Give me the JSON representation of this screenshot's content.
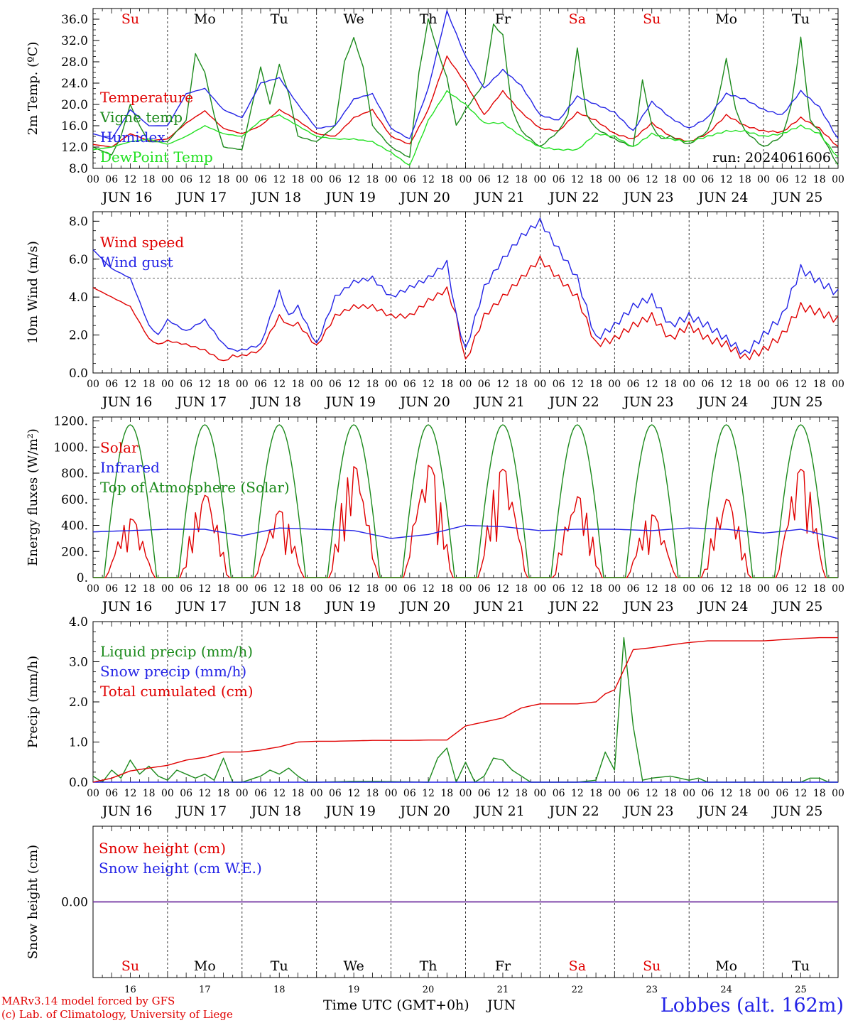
{
  "run_label": "run: 2024061606",
  "day_names": [
    "Su",
    "Mo",
    "Tu",
    "We",
    "Th",
    "Fr",
    "Sa",
    "Su",
    "Mo",
    "Tu"
  ],
  "weekend_days": [
    0,
    6,
    7
  ],
  "date_labels": [
    "JUN 16",
    "JUN 17",
    "JUN 18",
    "JUN 19",
    "JUN 20",
    "JUN 21",
    "JUN 22",
    "JUN 23",
    "JUN 24",
    "JUN 25"
  ],
  "hour_ticks": [
    "00",
    "06",
    "12",
    "18"
  ],
  "final_hour": "00",
  "bottom_day_numbers": [
    "16",
    "17",
    "18",
    "19",
    "20",
    "21",
    "22",
    "23",
    "24",
    "25"
  ],
  "x_axis_title": "Time UTC (GMT+0h)",
  "x_axis_month": "JUN",
  "credits": {
    "line1": "MARv3.14 model forced by GFS",
    "line2": "(c) Lab. of Climatology, University of Liege"
  },
  "station_label": "Lobbes (alt. 162m)",
  "colors": {
    "red": "#e00000",
    "green": "#1c8a1c",
    "blue": "#2323e6",
    "light_green": "#22e022",
    "purple": "#7030a0"
  },
  "chart_data": [
    {
      "id": "temperature",
      "type": "line",
      "ylabel": "2m Temp. (ºC)",
      "ylim": [
        8,
        38
      ],
      "yticks": [
        8.0,
        12.0,
        16.0,
        20.0,
        24.0,
        28.0,
        32.0,
        36.0
      ],
      "ytick_labels": [
        "8.0",
        "12.0",
        "16.0",
        "20.0",
        "24.0",
        "28.0",
        "32.0",
        "36.0"
      ],
      "x_unit": "hours since JUN 16 00 UTC",
      "series": [
        {
          "name": "Temperature",
          "color": "red",
          "x": [
            0,
            6,
            12,
            18,
            24,
            30,
            36,
            42,
            48,
            54,
            60,
            66,
            72,
            78,
            84,
            90,
            96,
            102,
            108,
            114,
            120,
            126,
            132,
            138,
            144,
            150,
            156,
            162,
            168,
            174,
            180,
            186,
            192,
            198,
            204,
            210,
            216,
            222,
            228,
            234,
            240
          ],
          "values": [
            12.5,
            12.0,
            14.5,
            13.2,
            13.5,
            16.5,
            18.8,
            15.5,
            14.5,
            16.0,
            19.0,
            17.0,
            14.5,
            14.0,
            17.5,
            19.0,
            14.0,
            12.5,
            19.0,
            29.0,
            24.0,
            18.0,
            22.5,
            18.5,
            15.5,
            15.0,
            18.5,
            17.0,
            14.5,
            13.5,
            16.5,
            14.0,
            13.0,
            14.5,
            18.0,
            16.0,
            15.0,
            14.8,
            17.5,
            15.5,
            12.0
          ]
        },
        {
          "name": "Vigne temp",
          "color": "green",
          "x": [
            0,
            6,
            9,
            12,
            15,
            18,
            24,
            30,
            33,
            36,
            39,
            42,
            48,
            54,
            57,
            60,
            63,
            66,
            72,
            78,
            81,
            84,
            87,
            90,
            96,
            102,
            105,
            108,
            111,
            114,
            117,
            120,
            126,
            129,
            132,
            135,
            138,
            144,
            150,
            153,
            156,
            159,
            162,
            168,
            174,
            177,
            180,
            183,
            186,
            192,
            198,
            201,
            204,
            207,
            210,
            216,
            222,
            225,
            228,
            231,
            234,
            240
          ],
          "values": [
            12.0,
            10.5,
            14.0,
            20.0,
            16.0,
            13.0,
            13.0,
            17.0,
            29.5,
            26.0,
            18.0,
            12.0,
            11.5,
            27.0,
            20.0,
            27.5,
            22.0,
            14.0,
            13.0,
            16.0,
            28.0,
            32.5,
            27.0,
            16.0,
            12.0,
            10.0,
            26.0,
            36.0,
            30.0,
            25.0,
            16.0,
            19.0,
            24.0,
            35.0,
            33.0,
            19.0,
            15.0,
            12.0,
            15.0,
            18.0,
            30.5,
            18.0,
            15.5,
            13.5,
            12.0,
            24.5,
            16.0,
            13.5,
            14.0,
            12.5,
            15.0,
            20.0,
            28.5,
            19.0,
            15.0,
            12.0,
            14.0,
            20.0,
            32.5,
            17.0,
            15.0,
            8.5
          ]
        },
        {
          "name": "Humidex",
          "color": "blue",
          "x": [
            0,
            6,
            12,
            18,
            24,
            30,
            36,
            42,
            48,
            54,
            60,
            66,
            72,
            78,
            84,
            90,
            96,
            102,
            108,
            114,
            120,
            126,
            132,
            138,
            144,
            150,
            156,
            162,
            168,
            174,
            180,
            186,
            192,
            198,
            204,
            210,
            216,
            222,
            228,
            234,
            240
          ],
          "values": [
            14.5,
            13.5,
            19.0,
            16.0,
            16.0,
            22.0,
            23.0,
            19.0,
            17.5,
            24.0,
            25.0,
            20.0,
            15.5,
            16.0,
            21.0,
            22.0,
            15.5,
            13.5,
            23.0,
            37.5,
            29.0,
            23.0,
            26.5,
            23.5,
            18.0,
            17.0,
            21.5,
            20.0,
            18.5,
            15.0,
            20.5,
            17.5,
            15.5,
            17.5,
            22.0,
            21.0,
            19.0,
            18.0,
            22.5,
            19.5,
            13.5
          ]
        },
        {
          "name": "DewPoint Temp",
          "color": "light_green",
          "x": [
            0,
            6,
            12,
            18,
            24,
            30,
            36,
            42,
            48,
            54,
            60,
            66,
            72,
            78,
            84,
            90,
            96,
            102,
            108,
            114,
            120,
            126,
            132,
            138,
            144,
            150,
            156,
            162,
            168,
            174,
            180,
            186,
            192,
            198,
            204,
            210,
            216,
            222,
            228,
            234,
            240
          ],
          "values": [
            11.5,
            12.0,
            13.0,
            13.5,
            12.5,
            14.0,
            16.0,
            14.5,
            14.0,
            17.0,
            18.0,
            16.0,
            14.0,
            13.5,
            13.5,
            13.0,
            11.0,
            8.5,
            17.0,
            22.5,
            20.0,
            16.5,
            16.5,
            14.0,
            12.0,
            11.5,
            11.5,
            14.5,
            14.0,
            12.0,
            14.5,
            13.5,
            13.0,
            14.0,
            15.0,
            15.0,
            14.0,
            14.5,
            16.0,
            14.5,
            10.0
          ]
        }
      ]
    },
    {
      "id": "wind",
      "type": "line",
      "ylabel": "10m Wind (m/s)",
      "ylim": [
        0,
        8.5
      ],
      "yticks": [
        0.0,
        2.0,
        4.0,
        6.0,
        8.0
      ],
      "ytick_labels": [
        "0.0",
        "2.0",
        "4.0",
        "6.0",
        "8.0"
      ],
      "reference_line": 5.0,
      "x_unit": "hours since JUN 16 00 UTC",
      "series": [
        {
          "name": "Wind speed",
          "color": "red",
          "x": [
            0,
            6,
            12,
            18,
            21,
            24,
            30,
            36,
            42,
            45,
            48,
            54,
            60,
            63,
            66,
            72,
            78,
            84,
            90,
            96,
            102,
            108,
            114,
            117,
            120,
            126,
            132,
            138,
            144,
            150,
            156,
            162,
            168,
            174,
            180,
            186,
            192,
            198,
            204,
            210,
            216,
            222,
            228,
            234,
            240
          ],
          "values": [
            4.5,
            4.0,
            3.5,
            1.8,
            1.5,
            1.7,
            1.5,
            1.2,
            0.6,
            0.9,
            0.9,
            1.2,
            3.0,
            2.5,
            2.6,
            1.4,
            3.0,
            3.5,
            3.5,
            3.0,
            3.0,
            3.8,
            4.4,
            3.0,
            0.6,
            3.0,
            4.0,
            5.0,
            6.0,
            5.0,
            4.0,
            1.5,
            1.8,
            2.5,
            3.0,
            1.8,
            2.5,
            1.8,
            1.5,
            0.8,
            1.2,
            2.0,
            3.5,
            3.2,
            2.8
          ]
        },
        {
          "name": "Wind gust",
          "color": "blue",
          "x": [
            0,
            6,
            12,
            18,
            21,
            24,
            30,
            36,
            42,
            45,
            48,
            54,
            60,
            63,
            66,
            72,
            78,
            84,
            90,
            96,
            102,
            108,
            114,
            117,
            120,
            126,
            132,
            138,
            144,
            150,
            156,
            162,
            168,
            174,
            180,
            186,
            192,
            198,
            204,
            210,
            216,
            222,
            228,
            234,
            240
          ],
          "values": [
            6.5,
            5.5,
            5.0,
            2.5,
            2.0,
            2.8,
            2.2,
            2.8,
            1.5,
            1.2,
            1.2,
            1.5,
            4.3,
            3.0,
            3.5,
            1.5,
            4.0,
            4.8,
            5.0,
            4.0,
            4.5,
            5.0,
            5.8,
            3.0,
            1.2,
            4.5,
            6.0,
            7.2,
            8.0,
            6.5,
            5.0,
            1.8,
            2.5,
            3.5,
            4.0,
            2.5,
            3.0,
            2.5,
            1.8,
            1.0,
            2.0,
            3.0,
            5.5,
            4.8,
            4.2
          ]
        }
      ]
    },
    {
      "id": "energy",
      "type": "line",
      "ylabel": "Energy fluxes (W/m²)",
      "ylim": [
        0,
        1230
      ],
      "yticks": [
        0,
        200,
        400,
        600,
        800,
        1000,
        1200
      ],
      "ytick_labels": [
        "0.",
        "200.",
        "400.",
        "600.",
        "800.",
        "1000.",
        "1200."
      ],
      "x_unit": "hours since JUN 16 00 UTC",
      "daily_toa_peak": 1170,
      "toa_daylight_hours": [
        3.5,
        20.5
      ],
      "solar_daily_peaks": [
        450,
        630,
        510,
        850,
        860,
        830,
        620,
        480,
        600,
        830
      ],
      "series": [
        {
          "name": "Solar",
          "color": "red"
        },
        {
          "name": "Infrared",
          "color": "blue",
          "x": [
            0,
            12,
            24,
            36,
            48,
            60,
            72,
            84,
            96,
            108,
            120,
            132,
            144,
            156,
            168,
            180,
            192,
            204,
            216,
            228,
            240
          ],
          "values": [
            350,
            360,
            370,
            370,
            320,
            380,
            370,
            360,
            300,
            330,
            400,
            390,
            360,
            370,
            370,
            360,
            380,
            370,
            340,
            370,
            300
          ]
        },
        {
          "name": "Top of Atmosphere (Solar)",
          "color": "green"
        }
      ]
    },
    {
      "id": "precip",
      "type": "line",
      "ylabel": "Precip (mm/h)",
      "ylim": [
        0,
        4.0
      ],
      "yticks": [
        0.0,
        1.0,
        2.0,
        3.0,
        4.0
      ],
      "ytick_labels": [
        "0.0",
        "1.0",
        "2.0",
        "3.0",
        "4.0"
      ],
      "x_unit": "hours since JUN 16 00 UTC",
      "series": [
        {
          "name": "Liquid precip (mm/h)",
          "color": "green",
          "x": [
            0,
            3,
            6,
            9,
            12,
            15,
            18,
            21,
            24,
            27,
            30,
            33,
            36,
            39,
            42,
            45,
            48,
            54,
            57,
            60,
            63,
            66,
            69,
            72,
            84,
            90,
            108,
            111,
            114,
            117,
            120,
            123,
            126,
            129,
            132,
            135,
            138,
            141,
            144,
            156,
            162,
            165,
            168,
            171,
            174,
            177,
            180,
            186,
            192,
            195,
            198,
            216,
            228,
            231,
            234,
            237,
            240
          ],
          "values": [
            0.15,
            0.0,
            0.3,
            0.1,
            0.55,
            0.2,
            0.4,
            0.15,
            0.05,
            0.3,
            0.2,
            0.1,
            0.2,
            0.05,
            0.6,
            0.0,
            0.0,
            0.15,
            0.3,
            0.2,
            0.35,
            0.15,
            0.0,
            0.0,
            0.02,
            0.02,
            0.0,
            0.6,
            0.85,
            0.0,
            0.5,
            0.0,
            0.15,
            0.6,
            0.55,
            0.3,
            0.15,
            0.0,
            0.0,
            0.0,
            0.05,
            0.75,
            0.3,
            3.6,
            1.4,
            0.05,
            0.1,
            0.15,
            0.05,
            0.1,
            0.0,
            0.0,
            0.0,
            0.1,
            0.1,
            0.0,
            0.0
          ]
        },
        {
          "name": "Snow precip (mm/h)",
          "color": "blue",
          "x": [
            0,
            240
          ],
          "values": [
            0.0,
            0.0
          ]
        },
        {
          "name": "Total cumulated (cm)",
          "color": "red",
          "x": [
            0,
            6,
            12,
            18,
            24,
            30,
            36,
            42,
            48,
            54,
            60,
            66,
            72,
            78,
            84,
            90,
            96,
            102,
            108,
            114,
            120,
            126,
            132,
            138,
            144,
            150,
            156,
            162,
            165,
            168,
            171,
            174,
            180,
            186,
            192,
            198,
            204,
            210,
            216,
            222,
            228,
            234,
            240
          ],
          "values": [
            0.0,
            0.1,
            0.28,
            0.35,
            0.42,
            0.55,
            0.62,
            0.75,
            0.75,
            0.8,
            0.88,
            1.0,
            1.02,
            1.02,
            1.03,
            1.04,
            1.04,
            1.04,
            1.05,
            1.05,
            1.4,
            1.5,
            1.6,
            1.85,
            1.95,
            1.95,
            1.95,
            2.0,
            2.2,
            2.3,
            2.8,
            3.3,
            3.35,
            3.42,
            3.48,
            3.52,
            3.52,
            3.52,
            3.52,
            3.55,
            3.58,
            3.6,
            3.6
          ]
        }
      ]
    },
    {
      "id": "snow",
      "type": "line",
      "ylabel": "Snow height (cm)",
      "ylim": [
        -1,
        1
      ],
      "yticks": [
        0.0
      ],
      "ytick_labels": [
        "0.00"
      ],
      "x_unit": "hours since JUN 16 00 UTC",
      "series": [
        {
          "name": "Snow height (cm)",
          "color": "red",
          "x": [
            0,
            240
          ],
          "values": [
            0,
            0
          ]
        },
        {
          "name": "Snow height (cm W.E.)",
          "color": "blue",
          "x": [
            0,
            240
          ],
          "values": [
            0,
            0
          ]
        }
      ]
    }
  ]
}
